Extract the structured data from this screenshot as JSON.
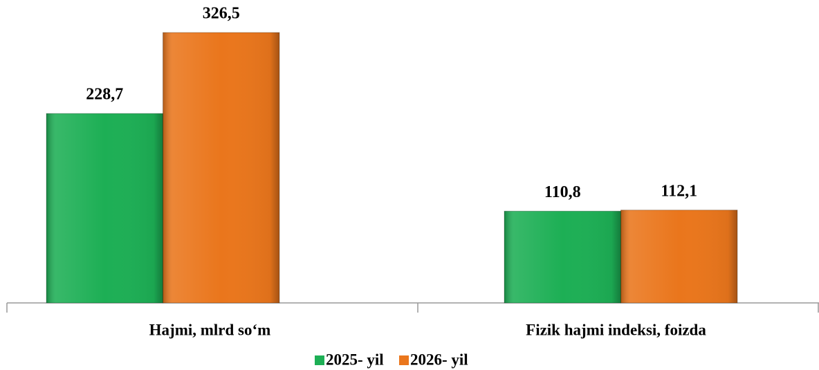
{
  "chart_data": {
    "type": "bar",
    "categories": [
      "Hajmi, mlrd so‘m",
      "Fizik hajmi indeksi, foizda"
    ],
    "series": [
      {
        "name": "2025- yil",
        "color": "#1daf55",
        "values": [
          228.7,
          110.8
        ],
        "value_labels": [
          "228,7",
          "110,8"
        ]
      },
      {
        "name": "2026- yil",
        "color": "#ea761c",
        "values": [
          326.5,
          112.1
        ],
        "value_labels": [
          "326,5",
          "112,1"
        ]
      }
    ],
    "legend": "bottom"
  }
}
